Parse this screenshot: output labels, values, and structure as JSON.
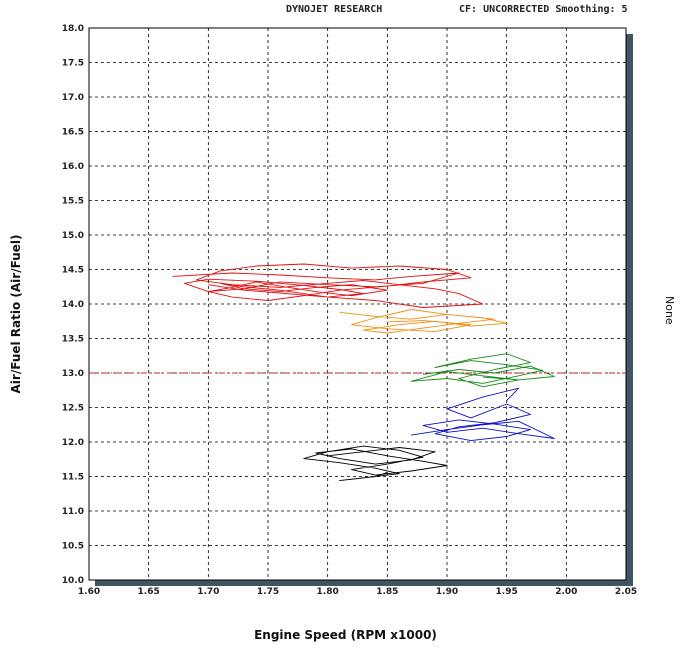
{
  "header": {
    "company": "DYNOJET RESEARCH",
    "info": "CF: UNCORRECTED  Smoothing: 5"
  },
  "right_label": "None",
  "chart_data": {
    "type": "line",
    "xlabel": "Engine Speed (RPM x1000)",
    "ylabel": "Air/Fuel Ratio (Air/Fuel)",
    "xlim": [
      1.6,
      2.05
    ],
    "ylim": [
      10.0,
      18.0
    ],
    "x_ticks": [
      "1.60",
      "1.65",
      "1.70",
      "1.75",
      "1.80",
      "1.85",
      "1.90",
      "1.95",
      "2.00",
      "2.05"
    ],
    "y_ticks": [
      "10.0",
      "10.5",
      "11.0",
      "11.5",
      "12.0",
      "12.5",
      "13.0",
      "13.5",
      "14.0",
      "14.5",
      "15.0",
      "15.5",
      "16.0",
      "16.5",
      "17.0",
      "17.5",
      "18.0"
    ],
    "grid": true,
    "reference_line": {
      "y": 13.0,
      "color": "#d62020",
      "style": "dash-dot"
    },
    "series": [
      {
        "color": "#e01010",
        "x": [
          1.67,
          1.72,
          1.76,
          1.8,
          1.84,
          1.87,
          1.91,
          1.88,
          1.84,
          1.8,
          1.76,
          1.73,
          1.7,
          1.68,
          1.7,
          1.74,
          1.78,
          1.81,
          1.83,
          1.8,
          1.76,
          1.73,
          1.71,
          1.73,
          1.76,
          1.79,
          1.82,
          1.85,
          1.82,
          1.79,
          1.76,
          1.74,
          1.72,
          1.7,
          1.72,
          1.75,
          1.78,
          1.81,
          1.85,
          1.88,
          1.92,
          1.9,
          1.86,
          1.82,
          1.78,
          1.74,
          1.71,
          1.69,
          1.72,
          1.76,
          1.8,
          1.83,
          1.86,
          1.89,
          1.91,
          1.93,
          1.88,
          1.84,
          1.8,
          1.76,
          1.73,
          1.7
        ],
        "y": [
          14.4,
          14.45,
          14.42,
          14.38,
          14.35,
          14.4,
          14.45,
          14.3,
          14.25,
          14.28,
          14.32,
          14.22,
          14.18,
          14.3,
          14.36,
          14.33,
          14.27,
          14.21,
          14.15,
          14.1,
          14.2,
          14.25,
          14.3,
          14.22,
          14.18,
          14.24,
          14.28,
          14.2,
          14.12,
          14.18,
          14.26,
          14.32,
          14.24,
          14.18,
          14.1,
          14.05,
          14.12,
          14.2,
          14.26,
          14.32,
          14.38,
          14.5,
          14.55,
          14.52,
          14.58,
          14.55,
          14.48,
          14.35,
          14.28,
          14.24,
          14.3,
          14.34,
          14.28,
          14.22,
          14.15,
          14.0,
          13.95,
          14.05,
          14.1,
          14.16,
          14.2,
          14.28
        ]
      },
      {
        "color": "#f09010",
        "x": [
          1.81,
          1.84,
          1.87,
          1.9,
          1.93,
          1.95,
          1.92,
          1.89,
          1.86,
          1.83,
          1.85,
          1.88,
          1.91,
          1.94,
          1.9,
          1.87,
          1.84,
          1.82,
          1.85,
          1.89,
          1.92,
          1.88,
          1.85
        ],
        "y": [
          13.88,
          13.82,
          13.78,
          13.85,
          13.8,
          13.72,
          13.68,
          13.75,
          13.7,
          13.62,
          13.58,
          13.65,
          13.72,
          13.78,
          13.85,
          13.92,
          13.8,
          13.7,
          13.64,
          13.6,
          13.7,
          13.76,
          13.74
        ]
      },
      {
        "color": "#1a8a1a",
        "x": [
          1.88,
          1.91,
          1.94,
          1.97,
          1.99,
          1.96,
          1.93,
          1.9,
          1.87,
          1.9,
          1.93,
          1.96,
          1.98,
          1.95,
          1.92,
          1.89,
          1.92,
          1.95,
          1.97,
          1.94,
          1.91,
          1.93,
          1.96,
          1.93
        ],
        "y": [
          12.98,
          13.05,
          13.0,
          13.1,
          12.95,
          12.9,
          12.96,
          13.02,
          12.88,
          12.92,
          12.85,
          12.96,
          13.04,
          13.12,
          13.18,
          13.08,
          13.2,
          13.28,
          13.15,
          13.05,
          12.92,
          12.8,
          12.9,
          12.94
        ]
      },
      {
        "color": "#1010c8",
        "x": [
          1.87,
          1.9,
          1.93,
          1.96,
          1.99,
          1.96,
          1.93,
          1.9,
          1.88,
          1.91,
          1.94,
          1.97,
          1.95,
          1.92,
          1.89,
          1.91,
          1.94,
          1.97,
          1.95,
          1.92,
          1.9,
          1.93,
          1.96,
          1.95
        ],
        "y": [
          12.1,
          12.18,
          12.25,
          12.3,
          12.05,
          12.12,
          12.2,
          12.14,
          12.24,
          12.32,
          12.26,
          12.18,
          12.08,
          12.02,
          12.12,
          12.22,
          12.28,
          12.4,
          12.55,
          12.35,
          12.48,
          12.65,
          12.78,
          12.6
        ]
      },
      {
        "color": "#000000",
        "x": [
          1.8,
          1.83,
          1.86,
          1.89,
          1.87,
          1.84,
          1.81,
          1.79,
          1.82,
          1.85,
          1.88,
          1.9,
          1.87,
          1.84,
          1.82,
          1.85,
          1.88,
          1.86,
          1.83,
          1.8,
          1.78,
          1.81,
          1.84,
          1.86,
          1.83,
          1.81,
          1.84,
          1.85
        ],
        "y": [
          11.8,
          11.86,
          11.92,
          11.86,
          11.74,
          11.68,
          11.76,
          11.84,
          11.9,
          11.8,
          11.72,
          11.66,
          11.58,
          11.52,
          11.6,
          11.68,
          11.78,
          11.88,
          11.94,
          11.86,
          11.76,
          11.7,
          11.62,
          11.54,
          11.48,
          11.44,
          11.5,
          11.56
        ]
      }
    ]
  }
}
